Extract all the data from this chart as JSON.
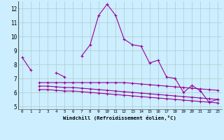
{
  "xlabel": "Windchill (Refroidissement éolien,°C)",
  "bg_color": "#cceeff",
  "line_color": "#990099",
  "grid_color": "#aacccc",
  "x": [
    0,
    1,
    2,
    3,
    4,
    5,
    6,
    7,
    8,
    9,
    10,
    11,
    12,
    13,
    14,
    15,
    16,
    17,
    18,
    19,
    20,
    21,
    22,
    23
  ],
  "series1": [
    8.5,
    7.6,
    null,
    null,
    7.4,
    7.1,
    null,
    8.6,
    9.4,
    11.5,
    12.3,
    11.5,
    9.8,
    9.4,
    9.3,
    8.1,
    8.3,
    7.1,
    7.0,
    6.0,
    6.5,
    6.1,
    5.3,
    5.5
  ],
  "series2": [
    null,
    null,
    6.7,
    6.7,
    6.7,
    6.7,
    6.7,
    6.7,
    6.7,
    6.7,
    6.7,
    6.7,
    6.7,
    6.65,
    6.6,
    6.55,
    6.5,
    6.45,
    6.4,
    6.35,
    6.3,
    6.25,
    6.2,
    6.15
  ],
  "series3": [
    null,
    null,
    6.2,
    6.2,
    6.15,
    6.1,
    6.1,
    6.05,
    6.0,
    5.95,
    5.9,
    5.85,
    5.8,
    5.75,
    5.7,
    5.65,
    5.6,
    5.55,
    5.5,
    5.45,
    5.4,
    5.35,
    5.3,
    5.25
  ],
  "series4": [
    null,
    null,
    6.45,
    6.45,
    6.4,
    6.35,
    6.35,
    6.3,
    6.25,
    6.2,
    6.15,
    6.1,
    6.05,
    6.0,
    5.95,
    5.9,
    5.85,
    5.8,
    5.75,
    5.7,
    5.65,
    5.6,
    5.55,
    5.5
  ],
  "ylim": [
    4.8,
    12.5
  ],
  "yticks": [
    5,
    6,
    7,
    8,
    9,
    10,
    11,
    12
  ],
  "xlim": [
    -0.5,
    23.5
  ]
}
